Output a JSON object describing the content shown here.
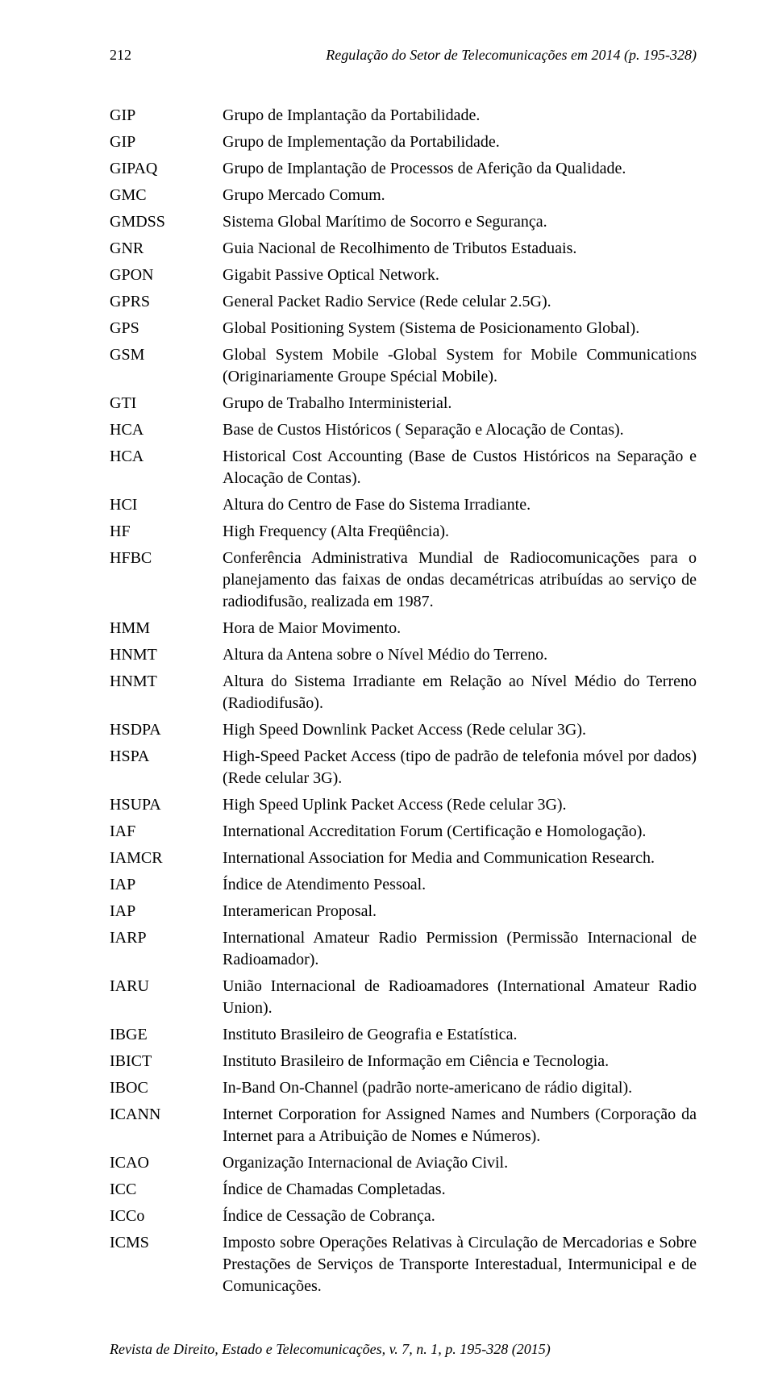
{
  "header": {
    "page_number": "212",
    "running_title": "Regulação do Setor de Telecomunicações em 2014 (p. 195-328)"
  },
  "footer": {
    "citation": "Revista de Direito, Estado e Telecomunicações, v. 7, n. 1, p. 195-328 (2015)"
  },
  "entries": [
    {
      "acronym": "GIP",
      "definition": "Grupo de Implantação da Portabilidade."
    },
    {
      "acronym": "GIP",
      "definition": "Grupo de Implementação da Portabilidade."
    },
    {
      "acronym": "GIPAQ",
      "definition": "Grupo de Implantação de Processos de Aferição da Qualidade."
    },
    {
      "acronym": "GMC",
      "definition": "Grupo Mercado Comum."
    },
    {
      "acronym": "GMDSS",
      "definition": "Sistema Global Marítimo de Socorro e Segurança."
    },
    {
      "acronym": "GNR",
      "definition": "Guia Nacional de Recolhimento de Tributos Estaduais."
    },
    {
      "acronym": "GPON",
      "definition": "Gigabit Passive Optical Network."
    },
    {
      "acronym": "GPRS",
      "definition": "General Packet Radio Service (Rede celular 2.5G)."
    },
    {
      "acronym": "GPS",
      "definition": "Global Positioning System (Sistema de Posicionamento Global)."
    },
    {
      "acronym": "GSM",
      "definition": "Global System Mobile -Global System for Mobile Communications (Originariamente Groupe Spécial Mobile)."
    },
    {
      "acronym": "GTI",
      "definition": "Grupo de Trabalho Interministerial."
    },
    {
      "acronym": "HCA",
      "definition": "Base de Custos Históricos ( Separação e Alocação de Contas)."
    },
    {
      "acronym": "HCA",
      "definition": "Historical Cost Accounting (Base de Custos Históricos na Separação e Alocação de Contas)."
    },
    {
      "acronym": "HCI",
      "definition": "Altura do Centro de Fase do Sistema Irradiante."
    },
    {
      "acronym": "HF",
      "definition": "High Frequency (Alta Freqüência)."
    },
    {
      "acronym": "HFBC",
      "definition": "Conferência Administrativa Mundial de Radiocomunicações para o planejamento das faixas de ondas decamétricas atribuídas ao serviço de radiodifusão, realizada em 1987."
    },
    {
      "acronym": "HMM",
      "definition": "Hora de Maior Movimento."
    },
    {
      "acronym": "HNMT",
      "definition": "Altura da Antena sobre o Nível Médio do Terreno."
    },
    {
      "acronym": "HNMT",
      "definition": "Altura do Sistema Irradiante em Relação ao Nível Médio do Terreno (Radiodifusão)."
    },
    {
      "acronym": "HSDPA",
      "definition": "High Speed Downlink Packet Access (Rede celular 3G)."
    },
    {
      "acronym": "HSPA",
      "definition": "High-Speed Packet Access (tipo de padrão de telefonia móvel por dados) (Rede celular 3G)."
    },
    {
      "acronym": "HSUPA",
      "definition": "High Speed Uplink Packet Access (Rede celular 3G)."
    },
    {
      "acronym": "IAF",
      "definition": "International Accreditation Forum (Certificação e Homologação)."
    },
    {
      "acronym": "IAMCR",
      "definition": "International Association for Media and Communication Research."
    },
    {
      "acronym": "IAP",
      "definition": "Índice de Atendimento Pessoal."
    },
    {
      "acronym": "IAP",
      "definition": "Interamerican Proposal."
    },
    {
      "acronym": "IARP",
      "definition": "International Amateur Radio Permission (Permissão Internacional de Radioamador)."
    },
    {
      "acronym": "IARU",
      "definition": "União Internacional de Radioamadores (International Amateur Radio Union)."
    },
    {
      "acronym": "IBGE",
      "definition": "Instituto Brasileiro de Geografia e Estatística."
    },
    {
      "acronym": "IBICT",
      "definition": "Instituto Brasileiro de Informação em Ciência e Tecnologia."
    },
    {
      "acronym": "IBOC",
      "definition": "In-Band On-Channel (padrão norte-americano de rádio digital)."
    },
    {
      "acronym": "ICANN",
      "definition": "Internet Corporation for Assigned Names and Numbers (Corporação da Internet para a Atribuição de Nomes e Números)."
    },
    {
      "acronym": "ICAO",
      "definition": "Organização Internacional de Aviação Civil."
    },
    {
      "acronym": "ICC",
      "definition": "Índice de Chamadas Completadas."
    },
    {
      "acronym": "ICCo",
      "definition": "Índice de Cessação de Cobrança."
    },
    {
      "acronym": "ICMS",
      "definition": "Imposto sobre Operações Relativas à Circulação de Mercadorias e Sobre Prestações de Serviços de Transporte Interestadual, Intermunicipal e de Comunicações."
    }
  ]
}
